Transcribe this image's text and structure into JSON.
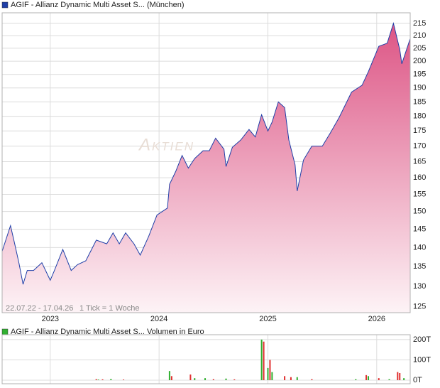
{
  "chart_data": [
    {
      "type": "area",
      "title": "AGIF - Allianz Dynamic Multi Asset S... (München)",
      "color": "#1f3fa8",
      "fill": "#e0588a",
      "log": true,
      "grid": true,
      "watermark": "Aktien",
      "annotations": [
        "22.07.22 - 17.04.26",
        "1 Tick = 1 Woche"
      ],
      "x": [
        0,
        4,
        6,
        8,
        10,
        12,
        15,
        19,
        23,
        25,
        29,
        33,
        36,
        40,
        45,
        50,
        53,
        56,
        59,
        63,
        66,
        70,
        74,
        79,
        80,
        83,
        86,
        89,
        92,
        96,
        99,
        102,
        106,
        107,
        110,
        114,
        118,
        121,
        124,
        127,
        129,
        132,
        135,
        137,
        140,
        141,
        144,
        148,
        153,
        157,
        161,
        167,
        172,
        175,
        180,
        184,
        187,
        190,
        191,
        195
      ],
      "values": [
        139,
        146,
        141,
        136,
        130.5,
        134,
        134,
        136,
        131.5,
        134,
        139.5,
        134,
        135.5,
        136.5,
        142,
        141,
        144,
        141,
        144,
        141,
        138,
        143,
        149,
        151,
        158,
        162,
        167,
        163,
        166,
        168.5,
        168.5,
        172.6,
        169,
        163.5,
        169.6,
        172,
        175.5,
        173,
        180.5,
        175,
        178,
        185,
        183,
        172,
        164,
        156,
        165.5,
        170,
        170,
        174.5,
        179.5,
        188.5,
        191,
        196,
        205.8,
        207,
        215,
        204.5,
        199,
        208.8
      ],
      "xlim": [
        0,
        195
      ],
      "xticks": [
        {
          "value": 23,
          "label": "2023"
        },
        {
          "value": 75,
          "label": "2024"
        },
        {
          "value": 127,
          "label": "2025"
        },
        {
          "value": 179,
          "label": "2026"
        }
      ],
      "ylim": [
        123.6,
        219.4
      ],
      "yticks": [
        125,
        130,
        135,
        140,
        145,
        150,
        155,
        160,
        165,
        170,
        175,
        180,
        185,
        190,
        195,
        200,
        205,
        210,
        215
      ]
    },
    {
      "type": "bar",
      "title": "AGIF - Allianz Dynamic Multi Asset S... Volumen in Euro",
      "grid": true,
      "x": [
        45,
        46,
        48,
        52,
        58,
        80,
        81,
        90,
        92,
        97,
        101,
        107,
        111,
        124,
        125,
        127,
        128,
        129,
        135,
        138,
        141,
        148,
        169,
        174,
        175,
        180,
        185,
        189,
        190,
        192
      ],
      "values": [
        5,
        3,
        4,
        6,
        3,
        45,
        20,
        28,
        10,
        10,
        5,
        8,
        4,
        200,
        190,
        60,
        100,
        40,
        20,
        15,
        15,
        5,
        5,
        25,
        20,
        10,
        5,
        40,
        35,
        10
      ],
      "colors": [
        "#e03030",
        "#30b030",
        "#e03030",
        "#30b030",
        "#e03030",
        "#30b030",
        "#e03030",
        "#e03030",
        "#30b030",
        "#30b030",
        "#e03030",
        "#30b030",
        "#e03030",
        "#30b030",
        "#e03030",
        "#30b030",
        "#e03030",
        "#30b030",
        "#e03030",
        "#e03030",
        "#30b030",
        "#e03030",
        "#30b030",
        "#e03030",
        "#30b030",
        "#e03030",
        "#30b030",
        "#e03030",
        "#e03030",
        "#30b030"
      ],
      "xlim": [
        0,
        195
      ],
      "ylim": [
        0,
        224
      ],
      "yticks": [
        {
          "value": 0,
          "label": "0T"
        },
        {
          "value": 100,
          "label": "100T"
        },
        {
          "value": 200,
          "label": "200T"
        }
      ]
    }
  ]
}
